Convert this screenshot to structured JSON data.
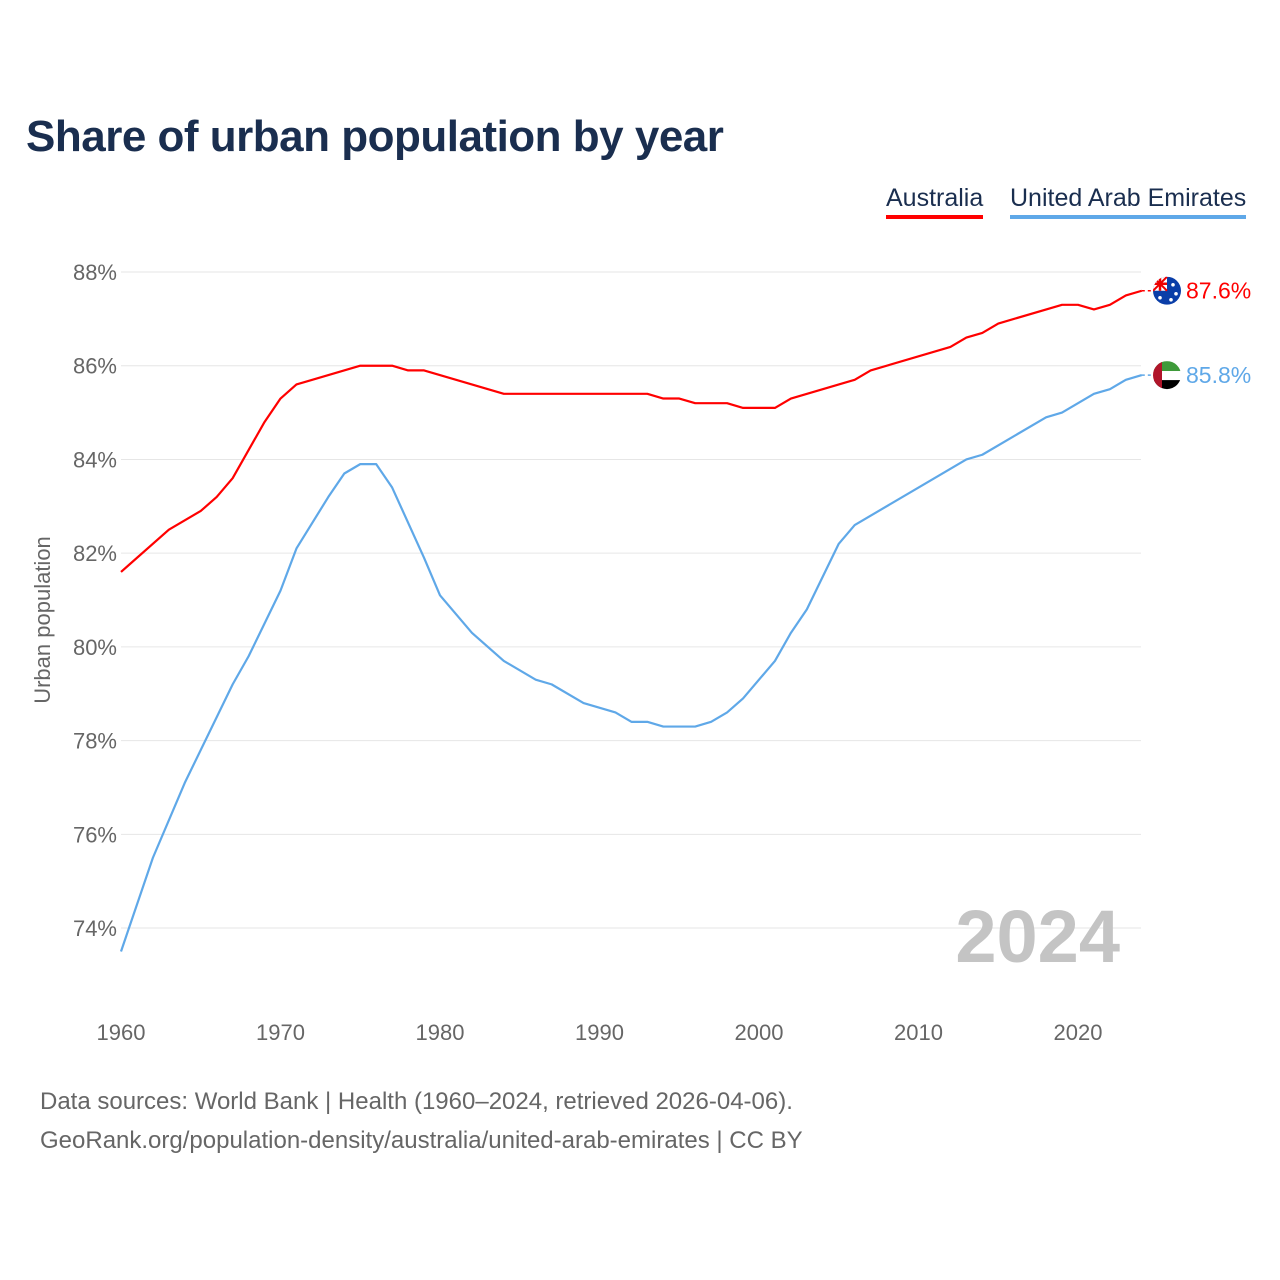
{
  "chart_data": {
    "type": "line",
    "title": "Share of urban population by year",
    "xlabel": "",
    "ylabel": "Urban population",
    "xlim": [
      1960,
      2024
    ],
    "ylim": [
      73,
      88.5
    ],
    "yticks": [
      "74%",
      "76%",
      "78%",
      "80%",
      "82%",
      "84%",
      "86%",
      "88%"
    ],
    "ytick_values": [
      74,
      76,
      78,
      80,
      82,
      84,
      86,
      88
    ],
    "xticks": [
      "1960",
      "1970",
      "1980",
      "1990",
      "2000",
      "2010",
      "2020"
    ],
    "xtick_values": [
      1960,
      1970,
      1980,
      1990,
      2000,
      2010,
      2020
    ],
    "grid": true,
    "legend_placement": "top-right",
    "watermark_year": "2024",
    "series": [
      {
        "name": "Australia",
        "color": "#ff0000",
        "end_label": "87.6%",
        "flag": "australia-flag",
        "x": [
          1960,
          1963,
          1965,
          1966,
          1967,
          1969,
          1970,
          1971,
          1975,
          1977,
          1978,
          1979,
          1984,
          1993,
          1994,
          1995,
          1996,
          1998,
          1999,
          2001,
          2002,
          2006,
          2007,
          2012,
          2013,
          2014,
          2015,
          2019,
          2020,
          2021,
          2022,
          2023,
          2024
        ],
        "y": [
          81.6,
          82.5,
          82.9,
          83.2,
          83.6,
          84.8,
          85.3,
          85.6,
          86.0,
          86.0,
          85.9,
          85.9,
          85.4,
          85.4,
          85.3,
          85.3,
          85.2,
          85.2,
          85.1,
          85.1,
          85.3,
          85.7,
          85.9,
          86.4,
          86.6,
          86.7,
          86.9,
          87.3,
          87.3,
          87.2,
          87.3,
          87.5,
          87.6
        ]
      },
      {
        "name": "United Arab Emirates",
        "color": "#5fa8e8",
        "end_label": "85.8%",
        "flag": "uae-flag",
        "x": [
          1960,
          1962,
          1964,
          1967,
          1968,
          1970,
          1971,
          1973,
          1974,
          1975,
          1976,
          1977,
          1979,
          1980,
          1982,
          1984,
          1986,
          1987,
          1989,
          1991,
          1992,
          1993,
          1994,
          1996,
          1997,
          1998,
          1999,
          2001,
          2002,
          2003,
          2005,
          2006,
          2010,
          2013,
          2014,
          2018,
          2019,
          2021,
          2022,
          2023,
          2024
        ],
        "y": [
          73.5,
          75.5,
          77.1,
          79.2,
          79.8,
          81.2,
          82.1,
          83.2,
          83.7,
          83.9,
          83.9,
          83.4,
          81.9,
          81.1,
          80.3,
          79.7,
          79.3,
          79.2,
          78.8,
          78.6,
          78.4,
          78.4,
          78.3,
          78.3,
          78.4,
          78.6,
          78.9,
          79.7,
          80.3,
          80.8,
          82.2,
          82.6,
          83.4,
          84.0,
          84.1,
          84.9,
          85.0,
          85.4,
          85.5,
          85.7,
          85.8
        ]
      }
    ]
  },
  "footer": {
    "source_line": "Data sources: World Bank | Health (1960–2024, retrieved 2026-04-06).",
    "credit_line": "GeoRank.org/population-density/australia/united-arab-emirates | CC BY"
  }
}
